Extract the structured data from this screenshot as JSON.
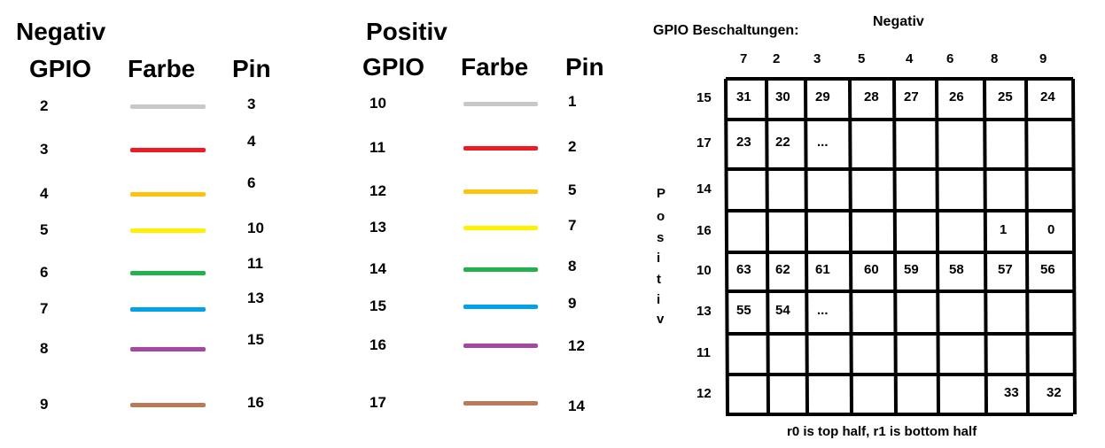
{
  "left_table": {
    "title": "Negativ",
    "headers": {
      "gpio": "GPIO",
      "farbe": "Farbe",
      "pin": "Pin"
    },
    "rows": [
      {
        "gpio": "2",
        "color": "#c8c8c8",
        "pin": "3"
      },
      {
        "gpio": "3",
        "color": "#ed1c24",
        "pin": "4"
      },
      {
        "gpio": "4",
        "color": "#ffc20e",
        "pin": "6"
      },
      {
        "gpio": "5",
        "color": "#fff200",
        "pin": "10"
      },
      {
        "gpio": "6",
        "color": "#22b14c",
        "pin": "11"
      },
      {
        "gpio": "7",
        "color": "#00a2e8",
        "pin": "13"
      },
      {
        "gpio": "8",
        "color": "#a349a4",
        "pin": "15"
      },
      {
        "gpio": "9",
        "color": "#b97a57",
        "pin": "16"
      }
    ]
  },
  "right_table": {
    "title": "Positiv",
    "headers": {
      "gpio": "GPIO",
      "farbe": "Farbe",
      "pin": "Pin"
    },
    "rows": [
      {
        "gpio": "10",
        "color": "#c8c8c8",
        "pin": "1"
      },
      {
        "gpio": "11",
        "color": "#ed1c24",
        "pin": "2"
      },
      {
        "gpio": "12",
        "color": "#ffc20e",
        "pin": "5"
      },
      {
        "gpio": "13",
        "color": "#fff200",
        "pin": "7"
      },
      {
        "gpio": "14",
        "color": "#22b14c",
        "pin": "8"
      },
      {
        "gpio": "15",
        "color": "#00a2e8",
        "pin": "9"
      },
      {
        "gpio": "16",
        "color": "#a349a4",
        "pin": "12"
      },
      {
        "gpio": "17",
        "color": "#b97a57",
        "pin": "14"
      }
    ]
  },
  "grid": {
    "label": "GPIO Beschaltungen:",
    "top_label": "Negativ",
    "side_label": [
      "P",
      "o",
      "s",
      "i",
      "t",
      "i",
      "v"
    ],
    "columns": [
      "7",
      "2",
      "3",
      "5",
      "4",
      "6",
      "8",
      "9"
    ],
    "rows": [
      "15",
      "17",
      "14",
      "16",
      "10",
      "13",
      "11",
      "12"
    ],
    "cells": [
      [
        "31",
        "30",
        "29",
        "28",
        "27",
        "26",
        "25",
        "24"
      ],
      [
        "23",
        "22",
        "...",
        "",
        "",
        "",
        "",
        ""
      ],
      [
        "",
        "",
        "",
        "",
        "",
        "",
        "",
        ""
      ],
      [
        "",
        "",
        "",
        "",
        "",
        "",
        "1",
        "0"
      ],
      [
        "63",
        "62",
        "61",
        "60",
        "59",
        "58",
        "57",
        "56"
      ],
      [
        "55",
        "54",
        "...",
        "",
        "",
        "",
        "",
        ""
      ],
      [
        "",
        "",
        "",
        "",
        "",
        "",
        "",
        ""
      ],
      [
        "",
        "",
        "",
        "",
        "",
        "",
        "33",
        "32"
      ]
    ],
    "note": "r0 is top half, r1 is bottom half"
  }
}
